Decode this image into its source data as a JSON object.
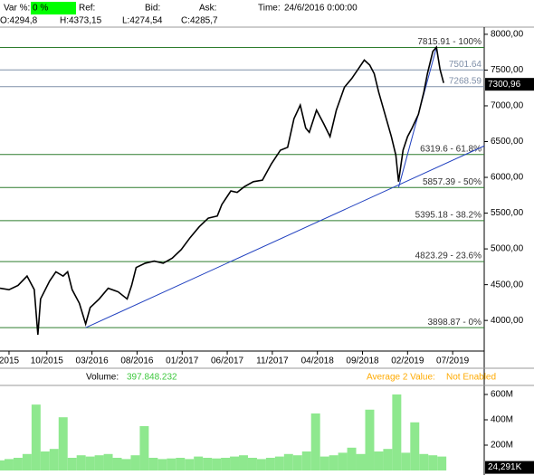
{
  "header": {
    "var_label": "Var %:",
    "var_value": "0 %",
    "ref_label": "Ref:",
    "bid_label": "Bid:",
    "ask_label": "Ask:",
    "time_label": "Time:",
    "time_value": "24/6/2016 0:00:00",
    "open": "O:4294,8",
    "high": "H:4373,15",
    "low": "L:4274,54",
    "close": "C:4285,7"
  },
  "chart_data": [
    {
      "type": "line",
      "color": "#000000",
      "x": [
        0,
        1.0,
        2.0,
        3.0,
        3.8,
        4.2,
        4.5,
        5.5,
        6.2,
        7.0,
        7.5,
        8.0,
        8.8,
        9.5,
        10.0,
        11.0,
        12.0,
        13.1,
        14.1,
        14.6,
        15.1,
        16.1,
        17.1,
        18.1,
        19.1,
        20.1,
        21.1,
        22.1,
        23.1,
        24.1,
        24.6,
        25.6,
        26.3,
        27.1,
        28.1,
        29.1,
        30.1,
        31.1,
        31.9,
        32.6,
        33.3,
        33.9,
        34.3,
        35.1,
        35.9,
        36.6,
        37.3,
        38.2,
        39.0,
        39.7,
        40.4,
        41.0,
        41.5,
        42.0,
        42.7,
        43.4,
        43.9,
        44.2,
        44.7,
        45.2,
        45.7,
        46.4,
        47.0,
        47.4,
        48.0,
        48.4,
        48.8,
        49.2
      ],
      "values": [
        4450,
        4430,
        4490,
        4620,
        4430,
        3800,
        4300,
        4550,
        4680,
        4620,
        4680,
        4430,
        4240,
        3950,
        4180,
        4300,
        4450,
        4400,
        4300,
        4490,
        4740,
        4800,
        4830,
        4800,
        4870,
        4990,
        5160,
        5310,
        5430,
        5460,
        5620,
        5810,
        5790,
        5870,
        5940,
        5960,
        6190,
        6380,
        6420,
        6820,
        7010,
        6690,
        6630,
        6940,
        6750,
        6570,
        6940,
        7260,
        7380,
        7510,
        7640,
        7570,
        7450,
        7190,
        6880,
        6570,
        6310,
        5940,
        6380,
        6570,
        6690,
        6880,
        7190,
        7450,
        7760,
        7820,
        7510,
        7320
      ],
      "xlim": [
        0,
        53.7
      ],
      "ylim": [
        3572,
        8100
      ],
      "xticks": [
        {
          "value": 1.0,
          "label": "2015"
        },
        {
          "value": 5.2,
          "label": "10/2015"
        },
        {
          "value": 10.2,
          "label": "03/2016"
        },
        {
          "value": 15.2,
          "label": "08/2016"
        },
        {
          "value": 20.2,
          "label": "01/2017"
        },
        {
          "value": 25.2,
          "label": "06/2017"
        },
        {
          "value": 30.2,
          "label": "11/2017"
        },
        {
          "value": 35.2,
          "label": "04/2018"
        },
        {
          "value": 40.2,
          "label": "09/2018"
        },
        {
          "value": 45.2,
          "label": "02/2019"
        },
        {
          "value": 50.2,
          "label": "07/2019"
        }
      ],
      "yticks": [
        {
          "value": 4000,
          "label": "4000,00"
        },
        {
          "value": 4500,
          "label": "4500,00"
        },
        {
          "value": 5000,
          "label": "5000,00"
        },
        {
          "value": 5500,
          "label": "5500,00"
        },
        {
          "value": 6000,
          "label": "6000,00"
        },
        {
          "value": 6500,
          "label": "6500,00"
        },
        {
          "value": 7000,
          "label": "7000,00"
        },
        {
          "value": 7500,
          "label": "7500,00"
        },
        {
          "value": 8000,
          "label": "8000,00"
        }
      ],
      "levels": [
        {
          "value": 7815.91,
          "label": "7815.91 - 100%",
          "color": "#2e7d2e"
        },
        {
          "value": 7501.64,
          "label": "7501.64",
          "color": "#7f8fa8"
        },
        {
          "value": 7268.59,
          "label": "7268.59",
          "color": "#7f8fa8"
        },
        {
          "value": 6319.6,
          "label": "6319.6 - 61.8%",
          "color": "#2e7d2e"
        },
        {
          "value": 5857.39,
          "label": "5857.39 - 50%",
          "color": "#2e7d2e"
        },
        {
          "value": 5395.18,
          "label": "5395.18 - 38.2%",
          "color": "#2e7d2e"
        },
        {
          "value": 4823.29,
          "label": "4823.29 - 23.6%",
          "color": "#2e7d2e"
        },
        {
          "value": 3898.87,
          "label": "3898.87 - 0%",
          "color": "#2e7d2e"
        }
      ],
      "trendlines": [
        {
          "x": [
            9.5,
            53.7
          ],
          "y": [
            3898.87,
            6440
          ]
        },
        {
          "x": [
            44.2,
            48.4
          ],
          "y": [
            5857.39,
            7815.91
          ]
        }
      ],
      "trend_color": "#1f3fbf",
      "last": {
        "value": 7300.96,
        "label": "7300,96"
      }
    },
    {
      "type": "bar",
      "color": "#8ee88e",
      "title": "Volume:",
      "total": "397.848.232",
      "average_label": "Average 2 Value:",
      "average_value": "Not Enabled",
      "x": [
        0,
        1,
        2,
        3,
        4,
        5,
        6,
        7,
        8,
        9,
        10,
        11,
        12,
        13,
        14,
        15,
        16,
        17,
        18,
        19,
        20,
        21,
        22,
        23,
        24,
        25,
        26,
        27,
        28,
        29,
        30,
        31,
        32,
        33,
        34,
        35,
        36,
        37,
        38,
        39,
        40,
        41,
        42,
        43,
        44,
        45,
        46,
        47,
        48,
        49
      ],
      "values": [
        80,
        90,
        100,
        130,
        520,
        150,
        170,
        420,
        100,
        120,
        110,
        120,
        130,
        100,
        90,
        120,
        350,
        100,
        90,
        95,
        100,
        90,
        110,
        100,
        95,
        100,
        110,
        120,
        100,
        90,
        100,
        110,
        130,
        120,
        150,
        450,
        110,
        120,
        140,
        180,
        130,
        480,
        150,
        170,
        600,
        140,
        380,
        130,
        120,
        110
      ],
      "ylim": [
        0,
        657
      ],
      "yticks": [
        {
          "value": 200,
          "label": "200M"
        },
        {
          "value": 400,
          "label": "400M"
        },
        {
          "value": 600,
          "label": "600M"
        }
      ],
      "last": {
        "value": 24.291,
        "label": "24,291K"
      }
    }
  ]
}
